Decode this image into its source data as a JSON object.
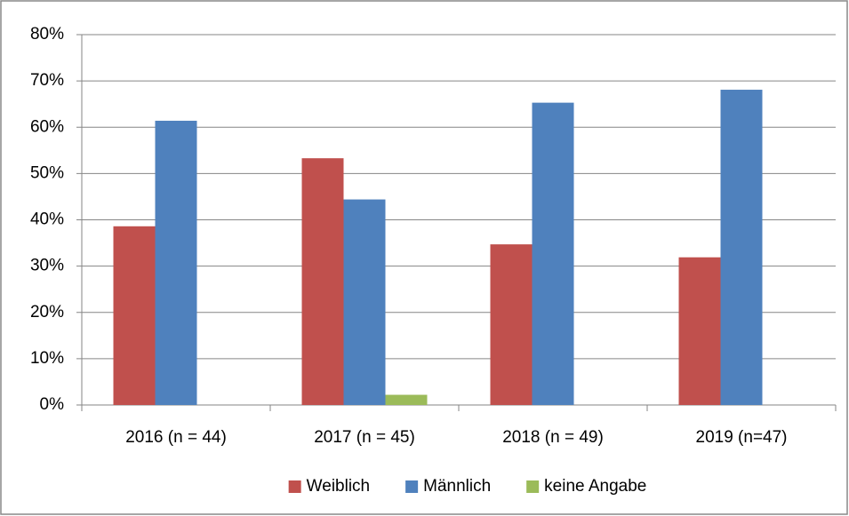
{
  "chart_data": {
    "type": "bar",
    "categories": [
      "2016 (n = 44)",
      "2017 (n = 45)",
      "2018 (n = 49)",
      "2019 (n=47)"
    ],
    "series": [
      {
        "name": "Weiblich",
        "color": "#c0504d",
        "values": [
          38.6,
          53.3,
          34.7,
          31.9
        ]
      },
      {
        "name": "Männlich",
        "color": "#4f81bd",
        "values": [
          61.4,
          44.4,
          65.3,
          68.1
        ]
      },
      {
        "name": "keine Angabe",
        "color": "#9bbb59",
        "values": [
          0,
          2.2,
          0,
          0
        ]
      }
    ],
    "ylim": [
      0,
      80
    ],
    "yticks": [
      {
        "value": 0,
        "label": "0%"
      },
      {
        "value": 10,
        "label": "10%"
      },
      {
        "value": 20,
        "label": "20%"
      },
      {
        "value": 30,
        "label": "30%"
      },
      {
        "value": 40,
        "label": "40%"
      },
      {
        "value": 50,
        "label": "50%"
      },
      {
        "value": 60,
        "label": "60%"
      },
      {
        "value": 70,
        "label": "70%"
      },
      {
        "value": 80,
        "label": "80%"
      }
    ],
    "grid": true,
    "legend": "bottom"
  }
}
